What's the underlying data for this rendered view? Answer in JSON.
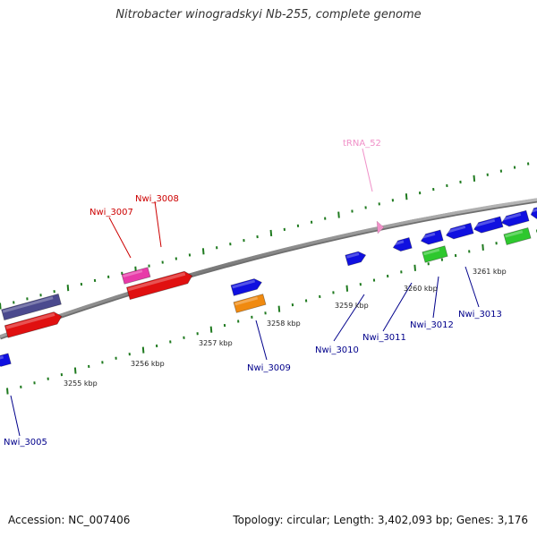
{
  "title": "Nitrobacter winogradskyi Nb-255, complete genome",
  "footer": {
    "accession": "Accession: NC_007406",
    "summary": "Topology: circular; Length: 3,402,093 bp; Genes: 3,176"
  },
  "colors": {
    "backbone": "#8c8c8c",
    "ticks": "#1f7a1f",
    "forward_cds": "#e01010",
    "reverse_cds": "#1010e0",
    "purple_gene": "#4b4a8e",
    "pink_gene": "#e83aa8",
    "orange_gene": "#f08a10",
    "green_gene": "#2ec82e",
    "trna": "#f090c8",
    "label_red": "#cc0000",
    "label_blue": "#00008b",
    "label_pink": "#f090c8"
  },
  "scale_labels": [
    "3255 kbp",
    "3256 kbp",
    "3257 kbp",
    "3258 kbp",
    "3259 kbp",
    "3260 kbp",
    "3261 kbp"
  ],
  "gene_labels": [
    {
      "text": "Nwi_3005",
      "color_key": "label_blue"
    },
    {
      "text": "Nwi_3007",
      "color_key": "label_red"
    },
    {
      "text": "Nwi_3008",
      "color_key": "label_red"
    },
    {
      "text": "Nwi_3009",
      "color_key": "label_blue"
    },
    {
      "text": "Nwi_3010",
      "color_key": "label_blue"
    },
    {
      "text": "Nwi_3011",
      "color_key": "label_blue"
    },
    {
      "text": "Nwi_3012",
      "color_key": "label_blue"
    },
    {
      "text": "Nwi_3013",
      "color_key": "label_blue"
    },
    {
      "text": "tRNA_52",
      "color_key": "label_pink"
    }
  ]
}
